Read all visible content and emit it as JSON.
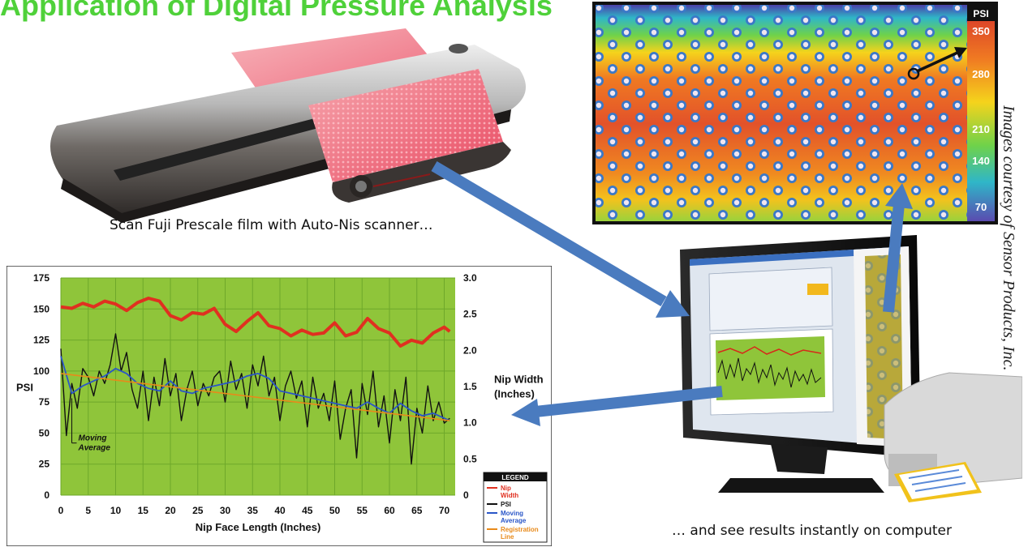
{
  "title_fragment": "Application of Digital Pressure Analysis",
  "captions": {
    "scan": "Scan Fuji Prescale film with Auto-Nis scanner…",
    "results": "… and see results instantly on computer",
    "credit": "Images courtesy of Sensor Products, Inc."
  },
  "pressure_map": {
    "unit": "PSI",
    "scale_labels": [
      "350",
      "280",
      "210",
      "140",
      "70"
    ],
    "colors": [
      "#d4312b",
      "#f07a22",
      "#f5d31c",
      "#6fd24a",
      "#2fb6c8",
      "#5a4bb0"
    ]
  },
  "chart_data": {
    "type": "line",
    "ylabel": "PSI",
    "y2label": "Nip Width (Inches)",
    "xlabel": "Nip Face Length (Inches)",
    "ylim": [
      0,
      175
    ],
    "y2lim": [
      0,
      3.0
    ],
    "xlim": [
      0,
      72
    ],
    "yticks": [
      "0",
      "25",
      "50",
      "75",
      "100",
      "125",
      "150",
      "175"
    ],
    "y2ticks": [
      "0",
      "0.5",
      "1.0",
      "1.5",
      "2.0",
      "2.5",
      "3.0"
    ],
    "xticks": [
      "0",
      "5",
      "10",
      "15",
      "20",
      "25",
      "30",
      "35",
      "40",
      "45",
      "50",
      "55",
      "60",
      "65",
      "70"
    ],
    "annotation": "Moving Average",
    "legend": {
      "title": "LEGEND",
      "entries": [
        {
          "label": "Nip Width",
          "color": "#e03020"
        },
        {
          "label": "PSI",
          "color": "#111111"
        },
        {
          "label": "Moving Average",
          "color": "#2a56c8"
        },
        {
          "label": "Registration Line",
          "color": "#e88a1a"
        }
      ]
    },
    "series": [
      {
        "name": "Nip Width",
        "x": [
          0,
          2,
          4,
          6,
          8,
          10,
          12,
          14,
          16,
          18,
          20,
          22,
          24,
          26,
          28,
          30,
          32,
          34,
          36,
          38,
          40,
          42,
          44,
          46,
          48,
          50,
          52,
          54,
          56,
          58,
          60,
          62,
          64,
          66,
          68,
          70,
          71
        ],
        "values": [
          2.6,
          2.58,
          2.65,
          2.6,
          2.68,
          2.64,
          2.55,
          2.66,
          2.72,
          2.68,
          2.48,
          2.42,
          2.52,
          2.5,
          2.58,
          2.36,
          2.26,
          2.4,
          2.52,
          2.34,
          2.3,
          2.2,
          2.28,
          2.22,
          2.24,
          2.38,
          2.2,
          2.25,
          2.44,
          2.3,
          2.24,
          2.06,
          2.14,
          2.1,
          2.24,
          2.32,
          2.26
        ]
      },
      {
        "name": "PSI",
        "x": [
          0,
          1,
          2,
          3,
          4,
          5,
          6,
          7,
          8,
          9,
          10,
          11,
          12,
          13,
          14,
          15,
          16,
          17,
          18,
          19,
          20,
          21,
          22,
          23,
          24,
          25,
          26,
          27,
          28,
          29,
          30,
          31,
          32,
          33,
          34,
          35,
          36,
          37,
          38,
          39,
          40,
          41,
          42,
          43,
          44,
          45,
          46,
          47,
          48,
          49,
          50,
          51,
          52,
          53,
          54,
          55,
          56,
          57,
          58,
          59,
          60,
          61,
          62,
          63,
          64,
          65,
          66,
          67,
          68,
          69,
          70,
          71
        ],
        "values": [
          118,
          48,
          90,
          70,
          102,
          95,
          80,
          100,
          90,
          105,
          130,
          100,
          115,
          85,
          70,
          100,
          60,
          95,
          72,
          110,
          80,
          98,
          60,
          85,
          100,
          72,
          90,
          80,
          95,
          100,
          75,
          108,
          85,
          98,
          70,
          105,
          88,
          112,
          80,
          95,
          60,
          88,
          100,
          78,
          92,
          55,
          95,
          70,
          82,
          60,
          92,
          45,
          70,
          85,
          30,
          90,
          65,
          100,
          55,
          80,
          42,
          85,
          60,
          95,
          25,
          70,
          50,
          88,
          60,
          75,
          58,
          62
        ]
      },
      {
        "name": "Moving Average",
        "x": [
          0,
          2,
          4,
          6,
          8,
          10,
          12,
          14,
          16,
          18,
          20,
          22,
          24,
          26,
          28,
          30,
          32,
          34,
          36,
          38,
          40,
          42,
          44,
          46,
          48,
          50,
          52,
          54,
          56,
          58,
          60,
          62,
          64,
          66,
          68,
          70,
          71
        ],
        "values": [
          112,
          82,
          88,
          92,
          96,
          102,
          98,
          90,
          86,
          84,
          92,
          84,
          82,
          86,
          88,
          90,
          92,
          96,
          98,
          94,
          84,
          82,
          80,
          78,
          76,
          74,
          72,
          70,
          75,
          70,
          66,
          74,
          68,
          64,
          66,
          62,
          60
        ]
      },
      {
        "name": "Registration Line",
        "x": [
          0,
          71
        ],
        "values": [
          98,
          60
        ]
      }
    ]
  }
}
